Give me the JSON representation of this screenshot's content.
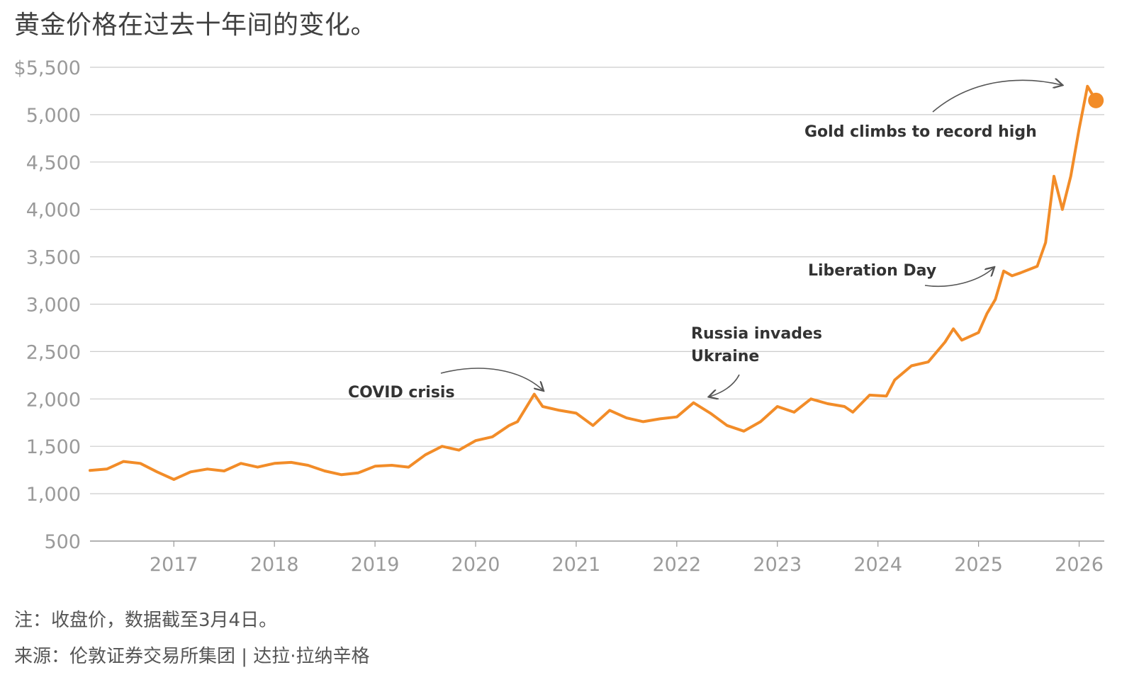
{
  "title": "黄金价格在过去十年间的变化。",
  "note": "注：收盘价，数据截至3月4日。",
  "source": "来源：伦敦证券交易所集团 | 达拉·拉纳辛格",
  "colors": {
    "line": "#f28c28",
    "grid": "#cccccc",
    "axis": "#999999",
    "tick_text": "#9a9a9a",
    "annotation_text": "#333333",
    "arrow": "#555555"
  },
  "chart_data": {
    "type": "line",
    "title": "黄金价格在过去十年间的变化。",
    "xlabel": "",
    "ylabel": "",
    "ylim": [
      500,
      5500
    ],
    "y_ticks": [
      500,
      1000,
      1500,
      2000,
      2500,
      3000,
      3500,
      4000,
      4500,
      5000,
      5500
    ],
    "y_tick_labels": [
      "500",
      "1,000",
      "1,500",
      "2,000",
      "2,500",
      "3,000",
      "3,500",
      "4,000",
      "4,500",
      "5,000",
      "$5,500"
    ],
    "x_ticks": [
      2017,
      2018,
      2019,
      2020,
      2021,
      2022,
      2023,
      2024,
      2025,
      2026
    ],
    "x_tick_labels": [
      "2017",
      "2018",
      "2019",
      "2020",
      "2021",
      "2022",
      "2023",
      "2024",
      "2025",
      "2026"
    ],
    "xlim": [
      "2016-03",
      "2026-04"
    ],
    "grid": true,
    "series": [
      {
        "x": [
          "2016-03",
          "2016-05",
          "2016-07",
          "2016-09",
          "2016-11",
          "2017-01",
          "2017-03",
          "2017-05",
          "2017-07",
          "2017-09",
          "2017-11",
          "2018-01",
          "2018-03",
          "2018-05",
          "2018-07",
          "2018-09",
          "2018-11",
          "2019-01",
          "2019-03",
          "2019-05",
          "2019-07",
          "2019-09",
          "2019-11",
          "2020-01",
          "2020-03",
          "2020-05",
          "2020-06",
          "2020-08",
          "2020-09",
          "2020-11",
          "2021-01",
          "2021-03",
          "2021-05",
          "2021-07",
          "2021-09",
          "2021-11",
          "2022-01",
          "2022-03",
          "2022-05",
          "2022-07",
          "2022-09",
          "2022-11",
          "2023-01",
          "2023-03",
          "2023-05",
          "2023-07",
          "2023-09",
          "2023-10",
          "2023-12",
          "2024-02",
          "2024-03",
          "2024-05",
          "2024-07",
          "2024-09",
          "2024-10",
          "2024-11",
          "2025-01",
          "2025-02",
          "2025-03",
          "2025-04",
          "2025-05",
          "2025-06",
          "2025-08",
          "2025-09",
          "2025-10",
          "2025-11",
          "2025-12",
          "2026-01",
          "2026-02",
          "2026-03"
        ],
        "y": [
          1245,
          1260,
          1340,
          1320,
          1230,
          1150,
          1230,
          1260,
          1240,
          1320,
          1280,
          1320,
          1330,
          1300,
          1240,
          1200,
          1220,
          1290,
          1300,
          1280,
          1410,
          1500,
          1460,
          1560,
          1600,
          1720,
          1760,
          2050,
          1920,
          1880,
          1850,
          1720,
          1880,
          1800,
          1760,
          1790,
          1810,
          1960,
          1850,
          1720,
          1660,
          1760,
          1920,
          1860,
          2000,
          1950,
          1920,
          1860,
          2040,
          2030,
          2200,
          2350,
          2390,
          2600,
          2740,
          2620,
          2700,
          2900,
          3050,
          3350,
          3300,
          3330,
          3400,
          3650,
          4350,
          4000,
          4350,
          4850,
          5300,
          5150
        ]
      }
    ],
    "annotations": [
      {
        "text": "COVID crisis",
        "x": "2020-08",
        "y": 2050
      },
      {
        "text": "Russia invades Ukraine",
        "x": "2022-03",
        "y": 2000
      },
      {
        "text": "Liberation Day",
        "x": "2025-04",
        "y": 3350
      },
      {
        "text": "Gold climbs to record high",
        "x": "2026-01",
        "y": 5450
      }
    ],
    "end_marker": {
      "x": "2026-03",
      "y": 5150
    }
  }
}
